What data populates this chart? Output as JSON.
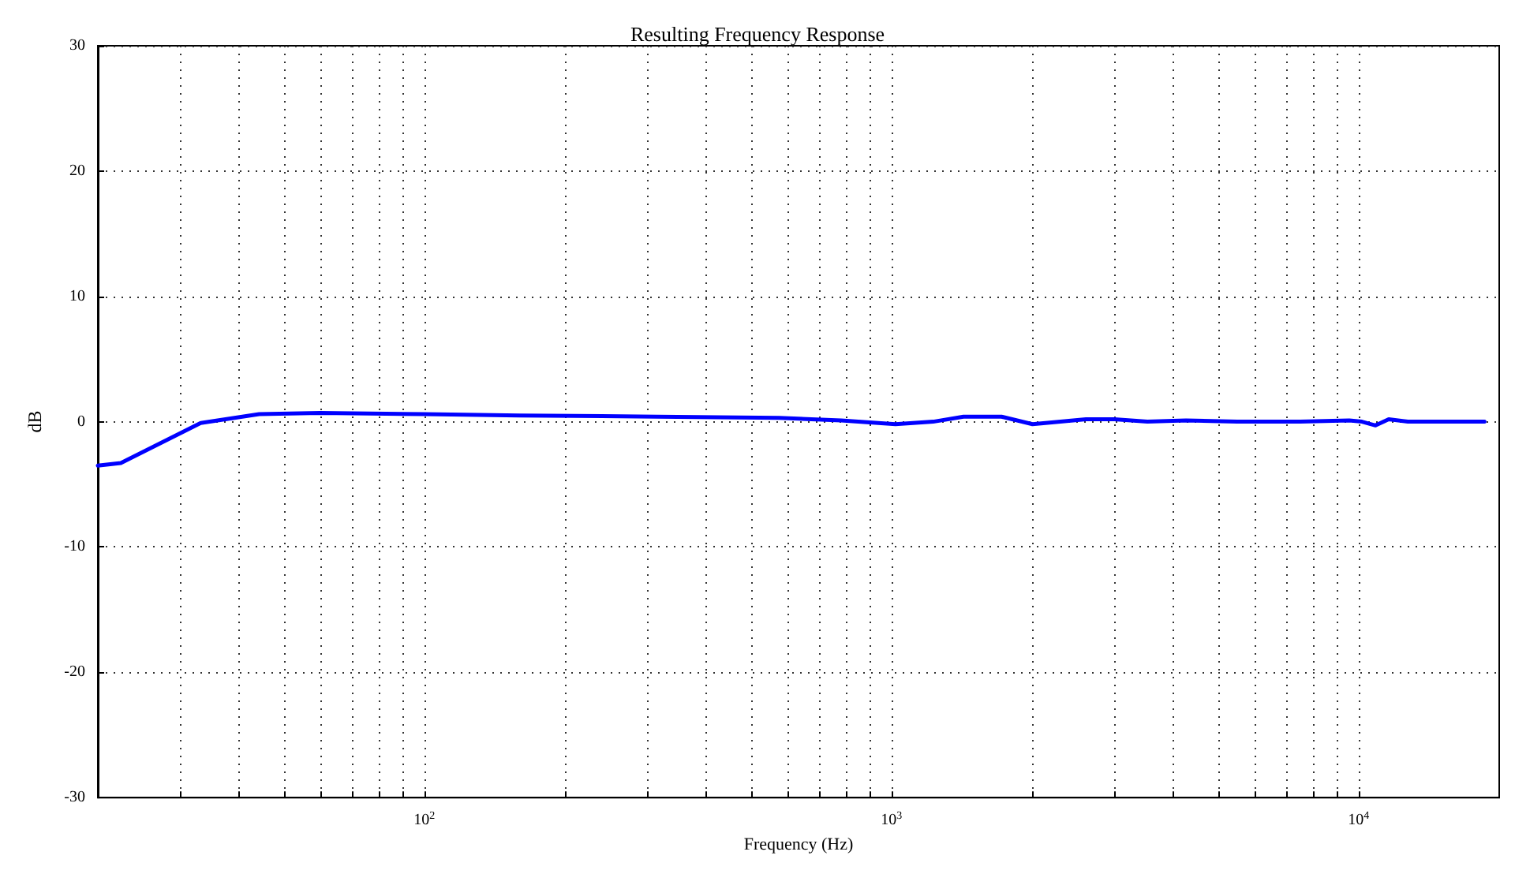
{
  "chart_data": {
    "type": "line",
    "title": "Resulting Frequency Response",
    "xlabel": "Frequency (Hz)",
    "ylabel": "dB",
    "log": "x",
    "grid": true,
    "marker": "none",
    "line_style": "solid",
    "x": [
      20,
      22.4,
      33.2,
      44.3,
      59.8,
      100,
      160,
      315,
      575,
      780,
      1020,
      1228,
      1426,
      1720,
      2004,
      2300,
      2608,
      3000,
      3530,
      4270,
      5500,
      7500,
      9550,
      10170,
      10870,
      11600,
      12750,
      15000,
      18600
    ],
    "series": [
      {
        "color": "#0000ff",
        "values": [
          -3.5,
          -3.3,
          -0.1,
          0.6,
          0.7,
          0.6,
          0.5,
          0.4,
          0.3,
          0.1,
          -0.2,
          0,
          0.4,
          0.4,
          -0.2,
          0,
          0.2,
          0.2,
          0,
          0.1,
          0,
          0,
          0.1,
          0,
          -0.3,
          0.2,
          0,
          0,
          0
        ]
      }
    ],
    "xlim": [
      20,
      20000
    ],
    "xticks": [
      {
        "value": 30,
        "label": null
      },
      {
        "value": 40,
        "label": null
      },
      {
        "value": 50,
        "label": null
      },
      {
        "value": 60,
        "label": null
      },
      {
        "value": 70,
        "label": null
      },
      {
        "value": 80,
        "label": null
      },
      {
        "value": 90,
        "label": null
      },
      {
        "value": 100,
        "label": "10$^{2}$"
      },
      {
        "value": 200,
        "label": null
      },
      {
        "value": 300,
        "label": null
      },
      {
        "value": 400,
        "label": null
      },
      {
        "value": 500,
        "label": null
      },
      {
        "value": 600,
        "label": null
      },
      {
        "value": 700,
        "label": null
      },
      {
        "value": 800,
        "label": null
      },
      {
        "value": 900,
        "label": null
      },
      {
        "value": 1000,
        "label": "10$^{3}$"
      },
      {
        "value": 2000,
        "label": null
      },
      {
        "value": 3000,
        "label": null
      },
      {
        "value": 4000,
        "label": null
      },
      {
        "value": 5000,
        "label": null
      },
      {
        "value": 6000,
        "label": null
      },
      {
        "value": 7000,
        "label": null
      },
      {
        "value": 8000,
        "label": null
      },
      {
        "value": 9000,
        "label": null
      },
      {
        "value": 10000,
        "label": "10$^{4}$"
      }
    ],
    "ylim": [
      -30,
      30
    ],
    "yticks": [
      -30,
      -20,
      -10,
      0,
      10,
      20,
      30
    ]
  }
}
